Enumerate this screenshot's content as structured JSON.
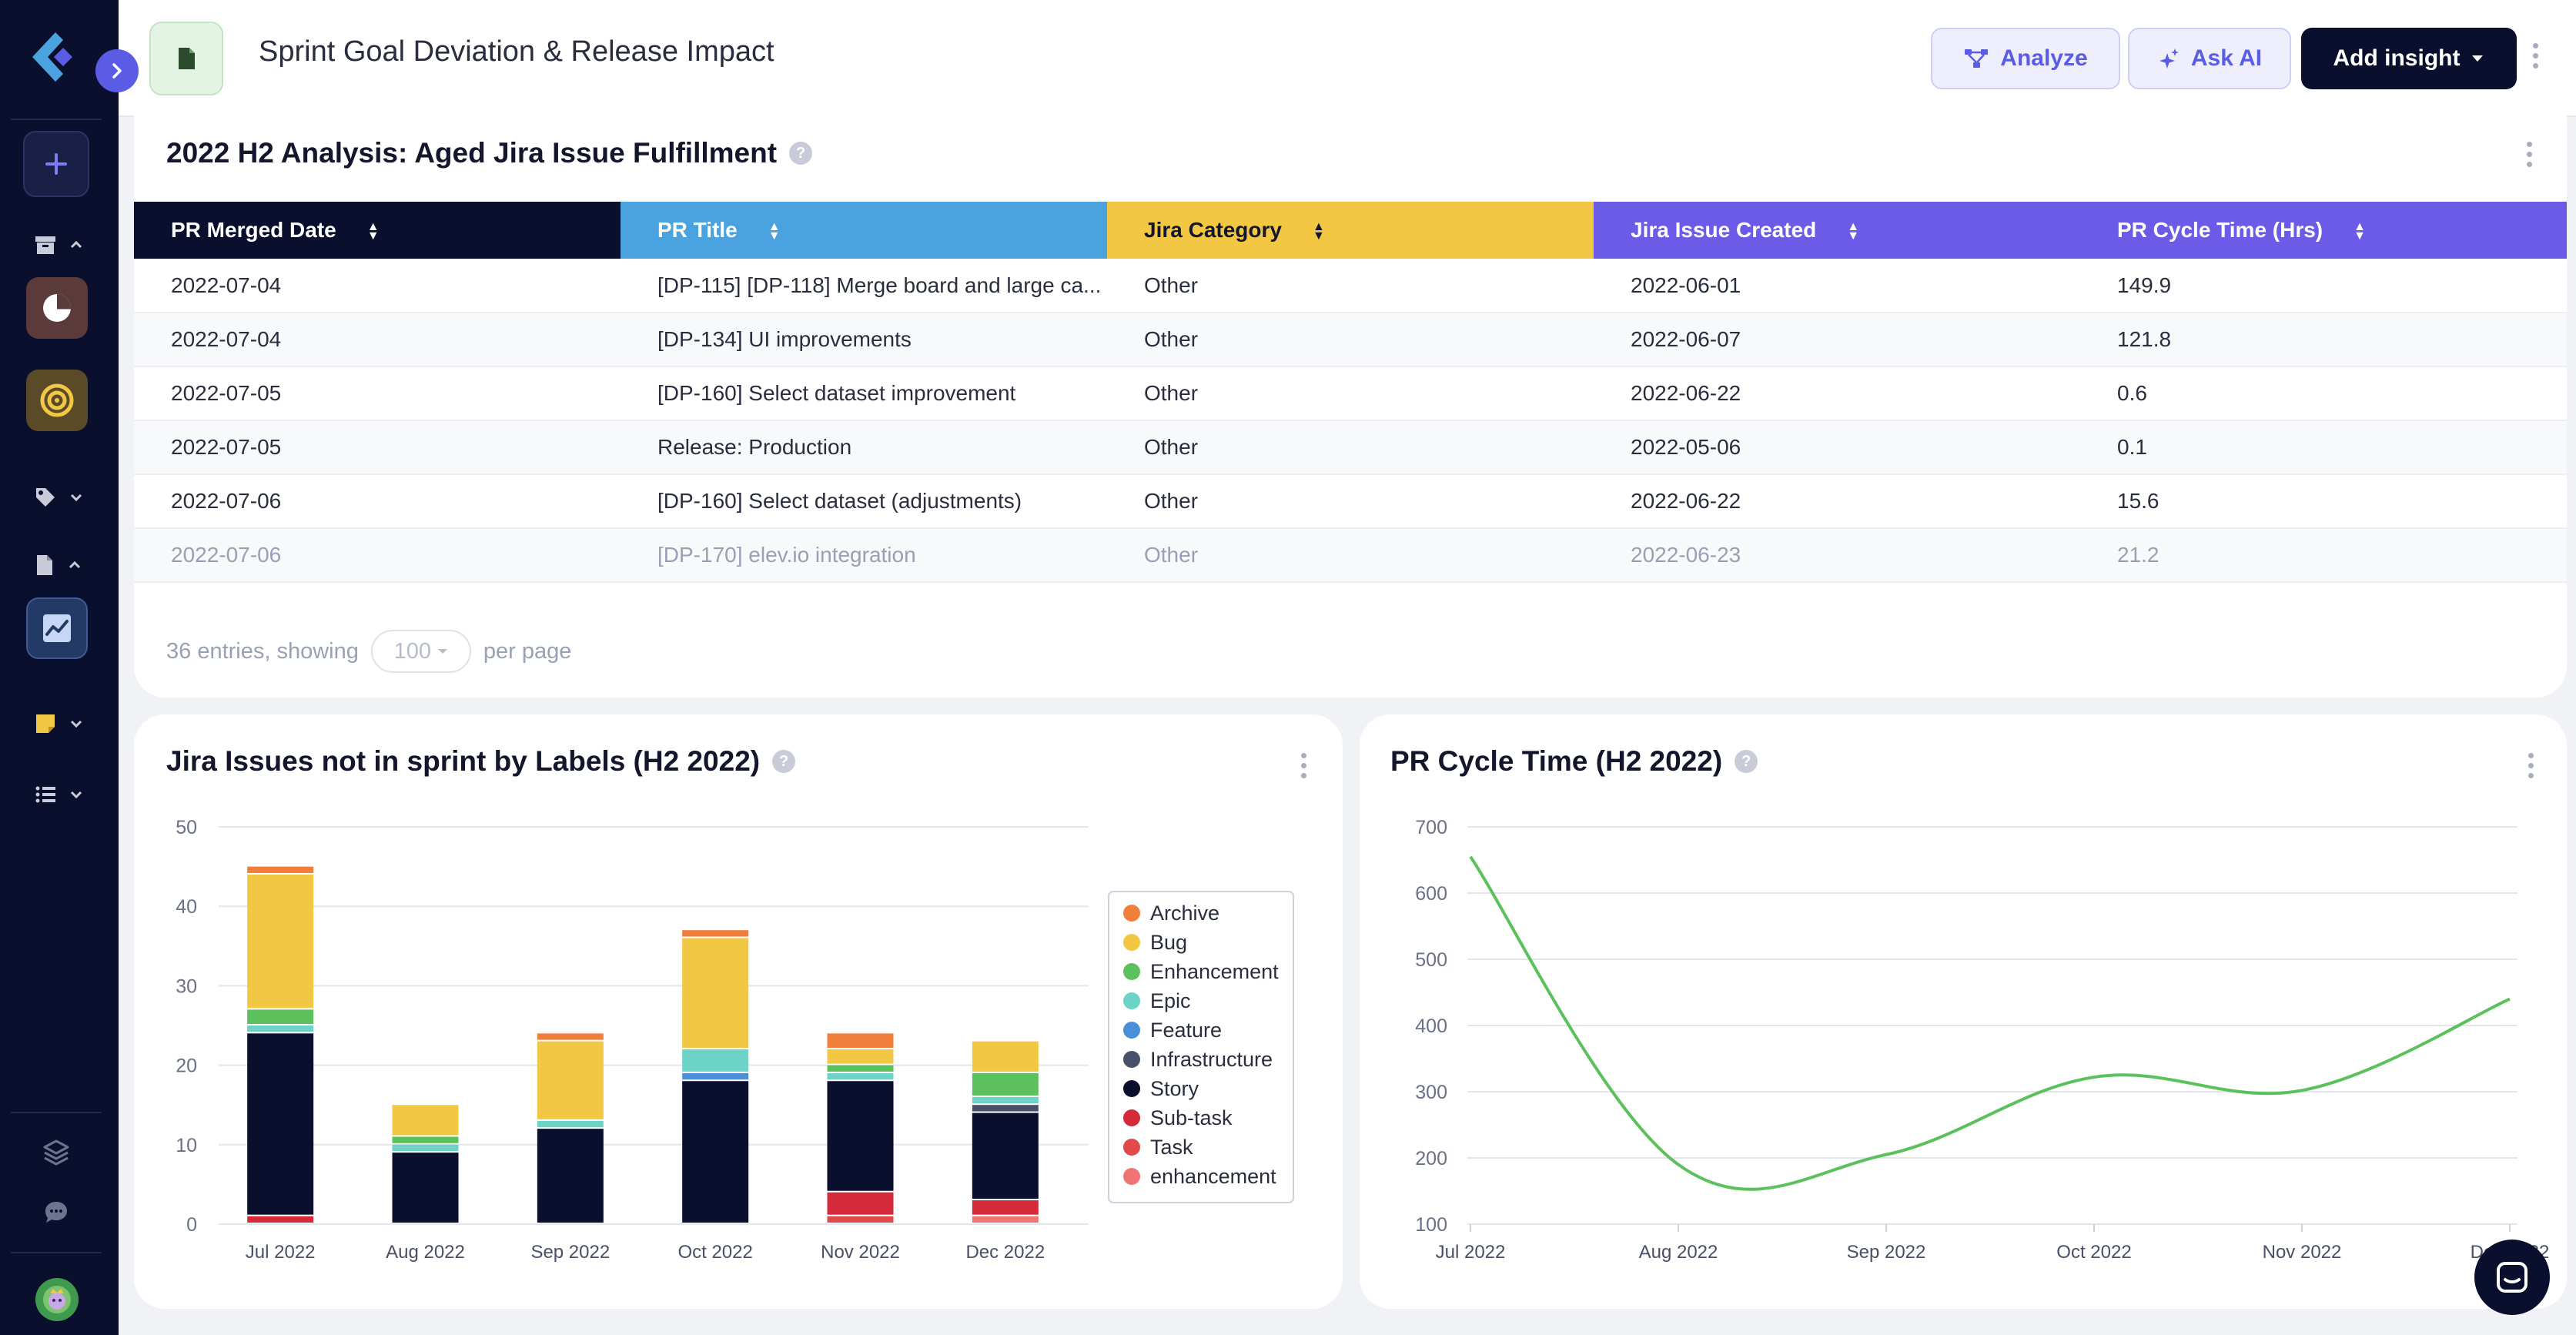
{
  "header": {
    "title": "Sprint Goal Deviation & Release Impact",
    "analyze_label": "Analyze",
    "ask_ai_label": "Ask AI",
    "add_insight_label": "Add insight"
  },
  "table_card": {
    "title": "2022 H2 Analysis: Aged Jira Issue Fulfillment",
    "columns": [
      {
        "label": "PR Merged Date",
        "color": "#0b0f2e"
      },
      {
        "label": "PR Title",
        "color": "#4aa3df"
      },
      {
        "label": "Jira Category",
        "color": "#f2c744"
      },
      {
        "label": "Jira Issue Created",
        "color": "#6b5be6"
      },
      {
        "label": "PR Cycle Time (Hrs)",
        "color": "#6b5be6"
      }
    ],
    "rows": [
      [
        "2022-07-04",
        "[DP-115] [DP-118] Merge board and large ca...",
        "Other",
        "2022-06-01",
        "149.9"
      ],
      [
        "2022-07-04",
        "[DP-134] UI improvements",
        "Other",
        "2022-06-07",
        "121.8"
      ],
      [
        "2022-07-05",
        "[DP-160] Select dataset improvement",
        "Other",
        "2022-06-22",
        "0.6"
      ],
      [
        "2022-07-05",
        "Release: Production",
        "Other",
        "2022-05-06",
        "0.1"
      ],
      [
        "2022-07-06",
        "[DP-160] Select dataset (adjustments)",
        "Other",
        "2022-06-22",
        "15.6"
      ],
      [
        "2022-07-06",
        "[DP-170] elev.io integration",
        "Other",
        "2022-06-23",
        "21.2"
      ]
    ],
    "footer": {
      "entries_text": "36 entries, showing",
      "per_page_value": "100",
      "per_page_text": "per page"
    }
  },
  "chart_data": [
    {
      "type": "bar",
      "stacked": true,
      "title": "Jira Issues not in sprint by Labels (H2 2022)",
      "categories": [
        "Jul 2022",
        "Aug 2022",
        "Sep 2022",
        "Oct 2022",
        "Nov 2022",
        "Dec 2022"
      ],
      "ylim": [
        0,
        50
      ],
      "yticks": [
        0,
        10,
        20,
        30,
        40,
        50
      ],
      "grid": true,
      "legend_position": "right",
      "series": [
        {
          "name": "enhancement",
          "color": "#f07474",
          "values": [
            0,
            0,
            0,
            0,
            0,
            1
          ]
        },
        {
          "name": "Task",
          "color": "#e04a4a",
          "values": [
            0,
            0,
            0,
            0,
            1,
            0
          ]
        },
        {
          "name": "Sub-task",
          "color": "#d42a3a",
          "values": [
            1,
            0,
            0,
            0,
            3,
            2
          ]
        },
        {
          "name": "Story",
          "color": "#0b0f2e",
          "values": [
            23,
            9,
            12,
            18,
            14,
            11
          ]
        },
        {
          "name": "Infrastructure",
          "color": "#4a5068",
          "values": [
            0,
            0,
            0,
            0,
            0,
            1
          ]
        },
        {
          "name": "Feature",
          "color": "#4a90d9",
          "values": [
            0,
            0,
            0,
            1,
            0,
            0
          ]
        },
        {
          "name": "Epic",
          "color": "#6dd3c7",
          "values": [
            1,
            1,
            1,
            3,
            1,
            1
          ]
        },
        {
          "name": "Enhancement",
          "color": "#5cc15c",
          "values": [
            2,
            1,
            0,
            0,
            1,
            3
          ]
        },
        {
          "name": "Bug",
          "color": "#f2c744",
          "values": [
            17,
            4,
            10,
            14,
            2,
            4
          ]
        },
        {
          "name": "Archive",
          "color": "#f07f3c",
          "values": [
            1,
            0,
            1,
            1,
            2,
            0
          ]
        }
      ],
      "legend_order": [
        "Archive",
        "Bug",
        "Enhancement",
        "Epic",
        "Feature",
        "Infrastructure",
        "Story",
        "Sub-task",
        "Task",
        "enhancement"
      ]
    },
    {
      "type": "line",
      "title": "PR Cycle Time (H2 2022)",
      "x": [
        "Jul 2022",
        "Aug 2022",
        "Sep 2022",
        "Oct 2022",
        "Nov 2022",
        "Dec 2022"
      ],
      "ylim": [
        100,
        700
      ],
      "yticks": [
        100,
        200,
        300,
        400,
        500,
        600,
        700
      ],
      "grid": true,
      "series": [
        {
          "color": "#5cc15c",
          "values": [
            655,
            190,
            205,
            322,
            302,
            440
          ]
        }
      ]
    }
  ]
}
